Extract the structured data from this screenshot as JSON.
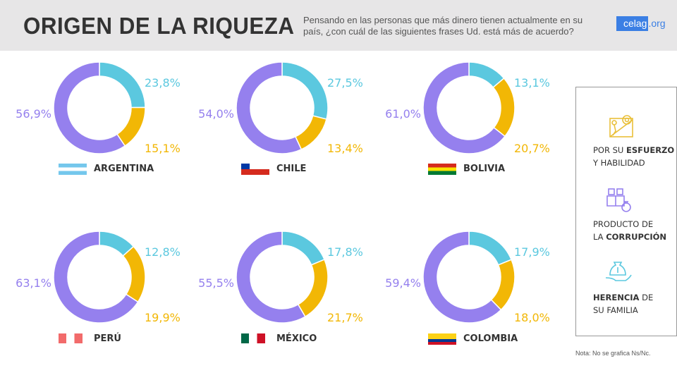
{
  "header": {
    "title": "ORIGEN DE LA RIQUEZA",
    "subtitle": "Pensando en las personas que más dinero tienen actualmente en su país, ¿con cuál de las siguientes frases Ud. está más de acuerdo?",
    "logo_a": "celag",
    "logo_b": ".org"
  },
  "colors": {
    "herencia": "#5bc8df",
    "esfuerzo": "#f2b705",
    "corrupcion": "#9580ee"
  },
  "legend": {
    "esfuerzo": {
      "pre": "POR SU ",
      "bold": "ESFUERZO",
      "line2": "Y HABILIDAD",
      "icon": "effort-gear-icon"
    },
    "corrupcion": {
      "line1": "PRODUCTO DE",
      "pre": "LA ",
      "bold": "CORRUPCIÓN",
      "icon": "corruption-money-bag-icon"
    },
    "herencia": {
      "bold": "HERENCIA",
      "post": " DE",
      "line2": "SU FAMILIA",
      "icon": "inheritance-hand-bag-icon"
    }
  },
  "note": "Nota: No se grafica Ns/Nc.",
  "chart_data": [
    {
      "type": "pie",
      "style": "donut",
      "title": "ARGENTINA",
      "flag": [
        "#74c7ec",
        "#ffffff",
        "#74c7ec"
      ],
      "categories": [
        "Herencia de su familia",
        "Por su esfuerzo y habilidad",
        "Producto de la corrupción"
      ],
      "values": [
        23.8,
        15.1,
        56.9
      ],
      "labels": [
        "23,8%",
        "15,1%",
        "56,9%"
      ]
    },
    {
      "type": "pie",
      "style": "donut",
      "title": "CHILE",
      "flag": [
        "#ffffff",
        "#d52b1e"
      ],
      "categories": [
        "Herencia de su familia",
        "Por su esfuerzo y habilidad",
        "Producto de la corrupción"
      ],
      "values": [
        27.5,
        13.4,
        54.0
      ],
      "labels": [
        "27,5%",
        "13,4%",
        "54,0%"
      ]
    },
    {
      "type": "pie",
      "style": "donut",
      "title": "BOLIVIA",
      "flag": [
        "#d52b1e",
        "#f9e300",
        "#007934"
      ],
      "categories": [
        "Herencia de su familia",
        "Por su esfuerzo y habilidad",
        "Producto de la corrupción"
      ],
      "values": [
        13.1,
        20.7,
        61.0
      ],
      "labels": [
        "13,1%",
        "20,7%",
        "61,0%"
      ]
    },
    {
      "type": "pie",
      "style": "donut",
      "title": "PERÚ",
      "flag": [
        "#f26b6b",
        "#ffffff",
        "#f26b6b"
      ],
      "categories": [
        "Herencia de su familia",
        "Por su esfuerzo y habilidad",
        "Producto de la corrupción"
      ],
      "values": [
        12.8,
        19.9,
        63.1
      ],
      "labels": [
        "12,8%",
        "19,9%",
        "63,1%"
      ]
    },
    {
      "type": "pie",
      "style": "donut",
      "title": "MÉXICO",
      "flag": [
        "#006847",
        "#ffffff",
        "#ce1126"
      ],
      "categories": [
        "Herencia de su familia",
        "Por su esfuerzo y habilidad",
        "Producto de la corrupción"
      ],
      "values": [
        17.8,
        21.7,
        55.5
      ],
      "labels": [
        "17,8%",
        "21,7%",
        "55,5%"
      ]
    },
    {
      "type": "pie",
      "style": "donut",
      "title": "COLOMBIA",
      "flag": [
        "#fcd116",
        "#fcd116",
        "#003893",
        "#ce1126"
      ],
      "categories": [
        "Herencia de su familia",
        "Por su esfuerzo y habilidad",
        "Producto de la corrupción"
      ],
      "values": [
        17.9,
        18.0,
        59.4
      ],
      "labels": [
        "17,9%",
        "18,0%",
        "59,4%"
      ]
    }
  ]
}
